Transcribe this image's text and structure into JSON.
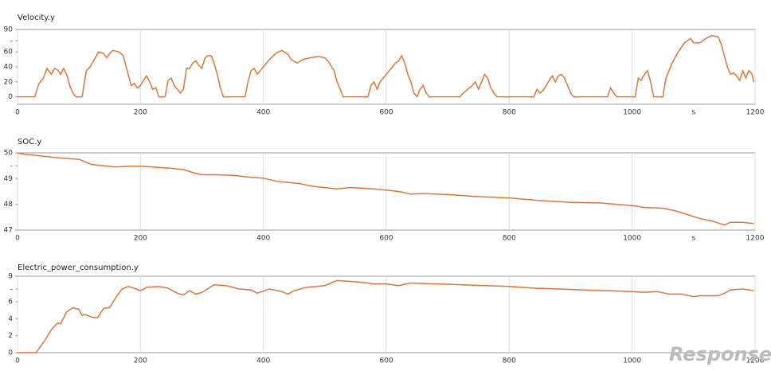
{
  "chart_data": [
    {
      "type": "line",
      "title": "Velocity.y",
      "color": "#d9773b",
      "grid": "x",
      "xlabel": "s",
      "xlim": [
        0,
        1200
      ],
      "xticks": [
        0,
        200,
        400,
        600,
        800,
        1000,
        1200
      ],
      "ylim": [
        -10,
        90
      ],
      "yticks": [
        0,
        20,
        40,
        60,
        {
          "value": 75,
          "label": "-"
        },
        90
      ],
      "x": [
        0,
        28,
        35,
        42,
        48,
        55,
        60,
        65,
        70,
        75,
        80,
        85,
        90,
        95,
        105,
        112,
        118,
        125,
        132,
        140,
        145,
        150,
        155,
        165,
        172,
        180,
        185,
        190,
        195,
        200,
        205,
        210,
        215,
        220,
        225,
        230,
        240,
        245,
        250,
        255,
        260,
        265,
        270,
        275,
        280,
        285,
        290,
        295,
        300,
        305,
        310,
        315,
        320,
        325,
        330,
        335,
        370,
        375,
        380,
        385,
        390,
        395,
        400,
        410,
        420,
        430,
        440,
        445,
        455,
        465,
        475,
        490,
        500,
        505,
        515,
        520,
        530,
        570,
        575,
        580,
        585,
        590,
        595,
        600,
        605,
        610,
        615,
        620,
        625,
        630,
        635,
        640,
        645,
        650,
        655,
        660,
        665,
        670,
        720,
        725,
        730,
        735,
        740,
        745,
        750,
        755,
        760,
        765,
        770,
        775,
        780,
        840,
        845,
        850,
        855,
        860,
        865,
        870,
        875,
        880,
        885,
        890,
        900,
        905,
        960,
        965,
        970,
        975,
        1005,
        1010,
        1015,
        1020,
        1025,
        1030,
        1035,
        1050,
        1055,
        1065,
        1075,
        1085,
        1095,
        1100,
        1110,
        1120,
        1130,
        1140,
        1145,
        1150,
        1155,
        1160,
        1165,
        1170,
        1175,
        1180,
        1185,
        1190,
        1195,
        1198
      ],
      "values": [
        0,
        0,
        18,
        25,
        38,
        30,
        38,
        36,
        30,
        38,
        30,
        15,
        5,
        0,
        0,
        35,
        40,
        50,
        60,
        58,
        52,
        58,
        62,
        60,
        55,
        30,
        15,
        18,
        12,
        15,
        22,
        28,
        20,
        10,
        12,
        0,
        0,
        22,
        25,
        15,
        10,
        5,
        10,
        38,
        38,
        45,
        48,
        42,
        38,
        52,
        55,
        55,
        45,
        30,
        12,
        0,
        0,
        20,
        35,
        38,
        30,
        35,
        40,
        50,
        58,
        62,
        57,
        50,
        45,
        50,
        52,
        54,
        52,
        48,
        35,
        20,
        0,
        0,
        15,
        20,
        10,
        20,
        25,
        30,
        35,
        40,
        45,
        48,
        55,
        45,
        30,
        20,
        5,
        0,
        10,
        15,
        5,
        0,
        0,
        5,
        8,
        12,
        15,
        20,
        10,
        20,
        30,
        25,
        12,
        5,
        0,
        0,
        10,
        5,
        8,
        15,
        22,
        28,
        20,
        28,
        30,
        25,
        5,
        0,
        0,
        12,
        5,
        0,
        0,
        25,
        22,
        30,
        35,
        20,
        0,
        0,
        25,
        45,
        60,
        72,
        78,
        72,
        72,
        78,
        82,
        80,
        70,
        55,
        40,
        30,
        32,
        28,
        22,
        35,
        25,
        35,
        30,
        20
      ]
    },
    {
      "type": "line",
      "title": "SOC.y",
      "color": "#d9773b",
      "grid": "x",
      "xlabel": "s",
      "xlim": [
        0,
        1200
      ],
      "xticks": [
        0,
        200,
        400,
        600,
        800,
        1000,
        1200
      ],
      "ylim": [
        47,
        50
      ],
      "yticks": [
        47,
        48,
        49,
        {
          "value": 49.5,
          "label": "-"
        },
        50
      ],
      "x": [
        0,
        10,
        30,
        50,
        70,
        100,
        120,
        140,
        160,
        180,
        200,
        220,
        250,
        270,
        290,
        300,
        320,
        350,
        380,
        400,
        420,
        440,
        460,
        480,
        500,
        520,
        540,
        560,
        580,
        600,
        620,
        640,
        660,
        700,
        750,
        800,
        850,
        900,
        950,
        1000,
        1020,
        1050,
        1070,
        1090,
        1110,
        1130,
        1150,
        1160,
        1180,
        1198
      ],
      "values": [
        50,
        49.95,
        49.9,
        49.85,
        49.8,
        49.75,
        49.55,
        49.5,
        49.45,
        49.48,
        49.48,
        49.45,
        49.4,
        49.35,
        49.2,
        49.15,
        49.15,
        49.13,
        49.05,
        49.02,
        48.9,
        48.85,
        48.8,
        48.7,
        48.65,
        48.6,
        48.65,
        48.63,
        48.6,
        48.55,
        48.5,
        48.4,
        48.42,
        48.38,
        48.3,
        48.25,
        48.15,
        48.08,
        48.05,
        47.95,
        47.88,
        47.85,
        47.75,
        47.6,
        47.45,
        47.35,
        47.2,
        47.3,
        47.3,
        47.25
      ]
    },
    {
      "type": "line",
      "title": "Electric_power_consumption.y",
      "color": "#d9773b",
      "grid": "x",
      "xlim": [
        0,
        1200
      ],
      "xticks": [
        0,
        200,
        400,
        600,
        800,
        1000,
        1200
      ],
      "ylim": [
        0,
        9
      ],
      "yticks": [
        0,
        2,
        4,
        6,
        {
          "value": 7.5,
          "label": "-"
        },
        9
      ],
      "x": [
        0,
        30,
        45,
        55,
        65,
        70,
        80,
        90,
        100,
        105,
        110,
        120,
        130,
        140,
        150,
        160,
        170,
        180,
        190,
        200,
        210,
        230,
        245,
        260,
        270,
        280,
        290,
        300,
        320,
        340,
        360,
        380,
        390,
        410,
        430,
        440,
        450,
        470,
        500,
        520,
        560,
        580,
        600,
        620,
        640,
        680,
        720,
        760,
        800,
        840,
        880,
        920,
        960,
        1000,
        1020,
        1040,
        1060,
        1080,
        1100,
        1110,
        1140,
        1150,
        1160,
        1180,
        1198
      ],
      "values": [
        0,
        0,
        1.5,
        2.7,
        3.5,
        3.4,
        4.8,
        5.3,
        5.1,
        4.4,
        4.5,
        4.2,
        4.1,
        5.2,
        5.3,
        6.5,
        7.5,
        7.8,
        7.6,
        7.3,
        7.7,
        7.8,
        7.6,
        7.0,
        6.8,
        7.3,
        6.9,
        7.1,
        8.0,
        7.9,
        7.5,
        7.4,
        7.0,
        7.5,
        7.2,
        6.9,
        7.3,
        7.7,
        7.9,
        8.5,
        8.3,
        8.1,
        8.1,
        7.9,
        8.2,
        8.1,
        8.0,
        7.9,
        7.8,
        7.6,
        7.5,
        7.4,
        7.3,
        7.2,
        7.1,
        7.2,
        6.9,
        6.9,
        6.6,
        6.7,
        6.7,
        7.0,
        7.4,
        7.5,
        7.3
      ]
    }
  ],
  "watermark": "Response"
}
